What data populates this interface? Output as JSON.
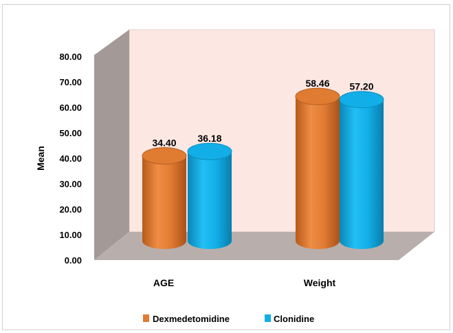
{
  "chart_data": {
    "type": "bar",
    "title": "",
    "xlabel": "",
    "ylabel": "Mean",
    "ylim": [
      0,
      80
    ],
    "ytick_labels": [
      "0.00",
      "10.00",
      "20.00",
      "30.00",
      "40.00",
      "50.00",
      "60.00",
      "70.00",
      "80.00"
    ],
    "categories": [
      "AGE",
      "Weight"
    ],
    "series": [
      {
        "name": "Dexmedetomidine",
        "color": "#e07b32",
        "values": [
          34.4,
          58.46
        ],
        "labels": [
          "34.40",
          "58.46"
        ]
      },
      {
        "name": "Clonidine",
        "color": "#12aee8",
        "values": [
          36.18,
          57.2
        ],
        "labels": [
          "36.18",
          "57.20"
        ]
      }
    ],
    "grid": false,
    "legend_position": "bottom",
    "style": "3d-cylinder"
  }
}
